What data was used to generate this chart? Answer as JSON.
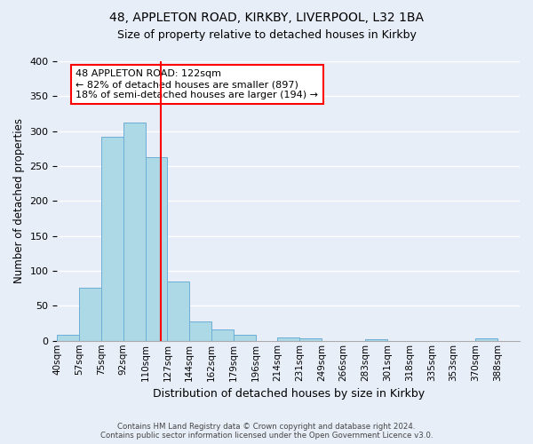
{
  "title1": "48, APPLETON ROAD, KIRKBY, LIVERPOOL, L32 1BA",
  "title2": "Size of property relative to detached houses in Kirkby",
  "xlabel": "Distribution of detached houses by size in Kirkby",
  "ylabel": "Number of detached properties",
  "bin_labels": [
    "40sqm",
    "57sqm",
    "75sqm",
    "92sqm",
    "110sqm",
    "127sqm",
    "144sqm",
    "162sqm",
    "179sqm",
    "196sqm",
    "214sqm",
    "231sqm",
    "249sqm",
    "266sqm",
    "283sqm",
    "301sqm",
    "318sqm",
    "335sqm",
    "353sqm",
    "370sqm",
    "388sqm"
  ],
  "bar_heights": [
    8,
    76,
    292,
    312,
    263,
    85,
    28,
    16,
    9,
    0,
    5,
    4,
    0,
    0,
    2,
    0,
    0,
    0,
    0,
    3
  ],
  "bar_color": "#add8e6",
  "bar_edge_color": "#6baed6",
  "highlight_line_color": "red",
  "annotation_line1": "48 APPLETON ROAD: 122sqm",
  "annotation_line2": "← 82% of detached houses are smaller (897)",
  "annotation_line3": "18% of semi-detached houses are larger (194) →",
  "annotation_box_color": "white",
  "annotation_box_edge_color": "red",
  "footer_line1": "Contains HM Land Registry data © Crown copyright and database right 2024.",
  "footer_line2": "Contains public sector information licensed under the Open Government Licence v3.0.",
  "ylim": [
    0,
    400
  ],
  "yticks": [
    0,
    50,
    100,
    150,
    200,
    250,
    300,
    350,
    400
  ],
  "background_color": "#e8eef8"
}
